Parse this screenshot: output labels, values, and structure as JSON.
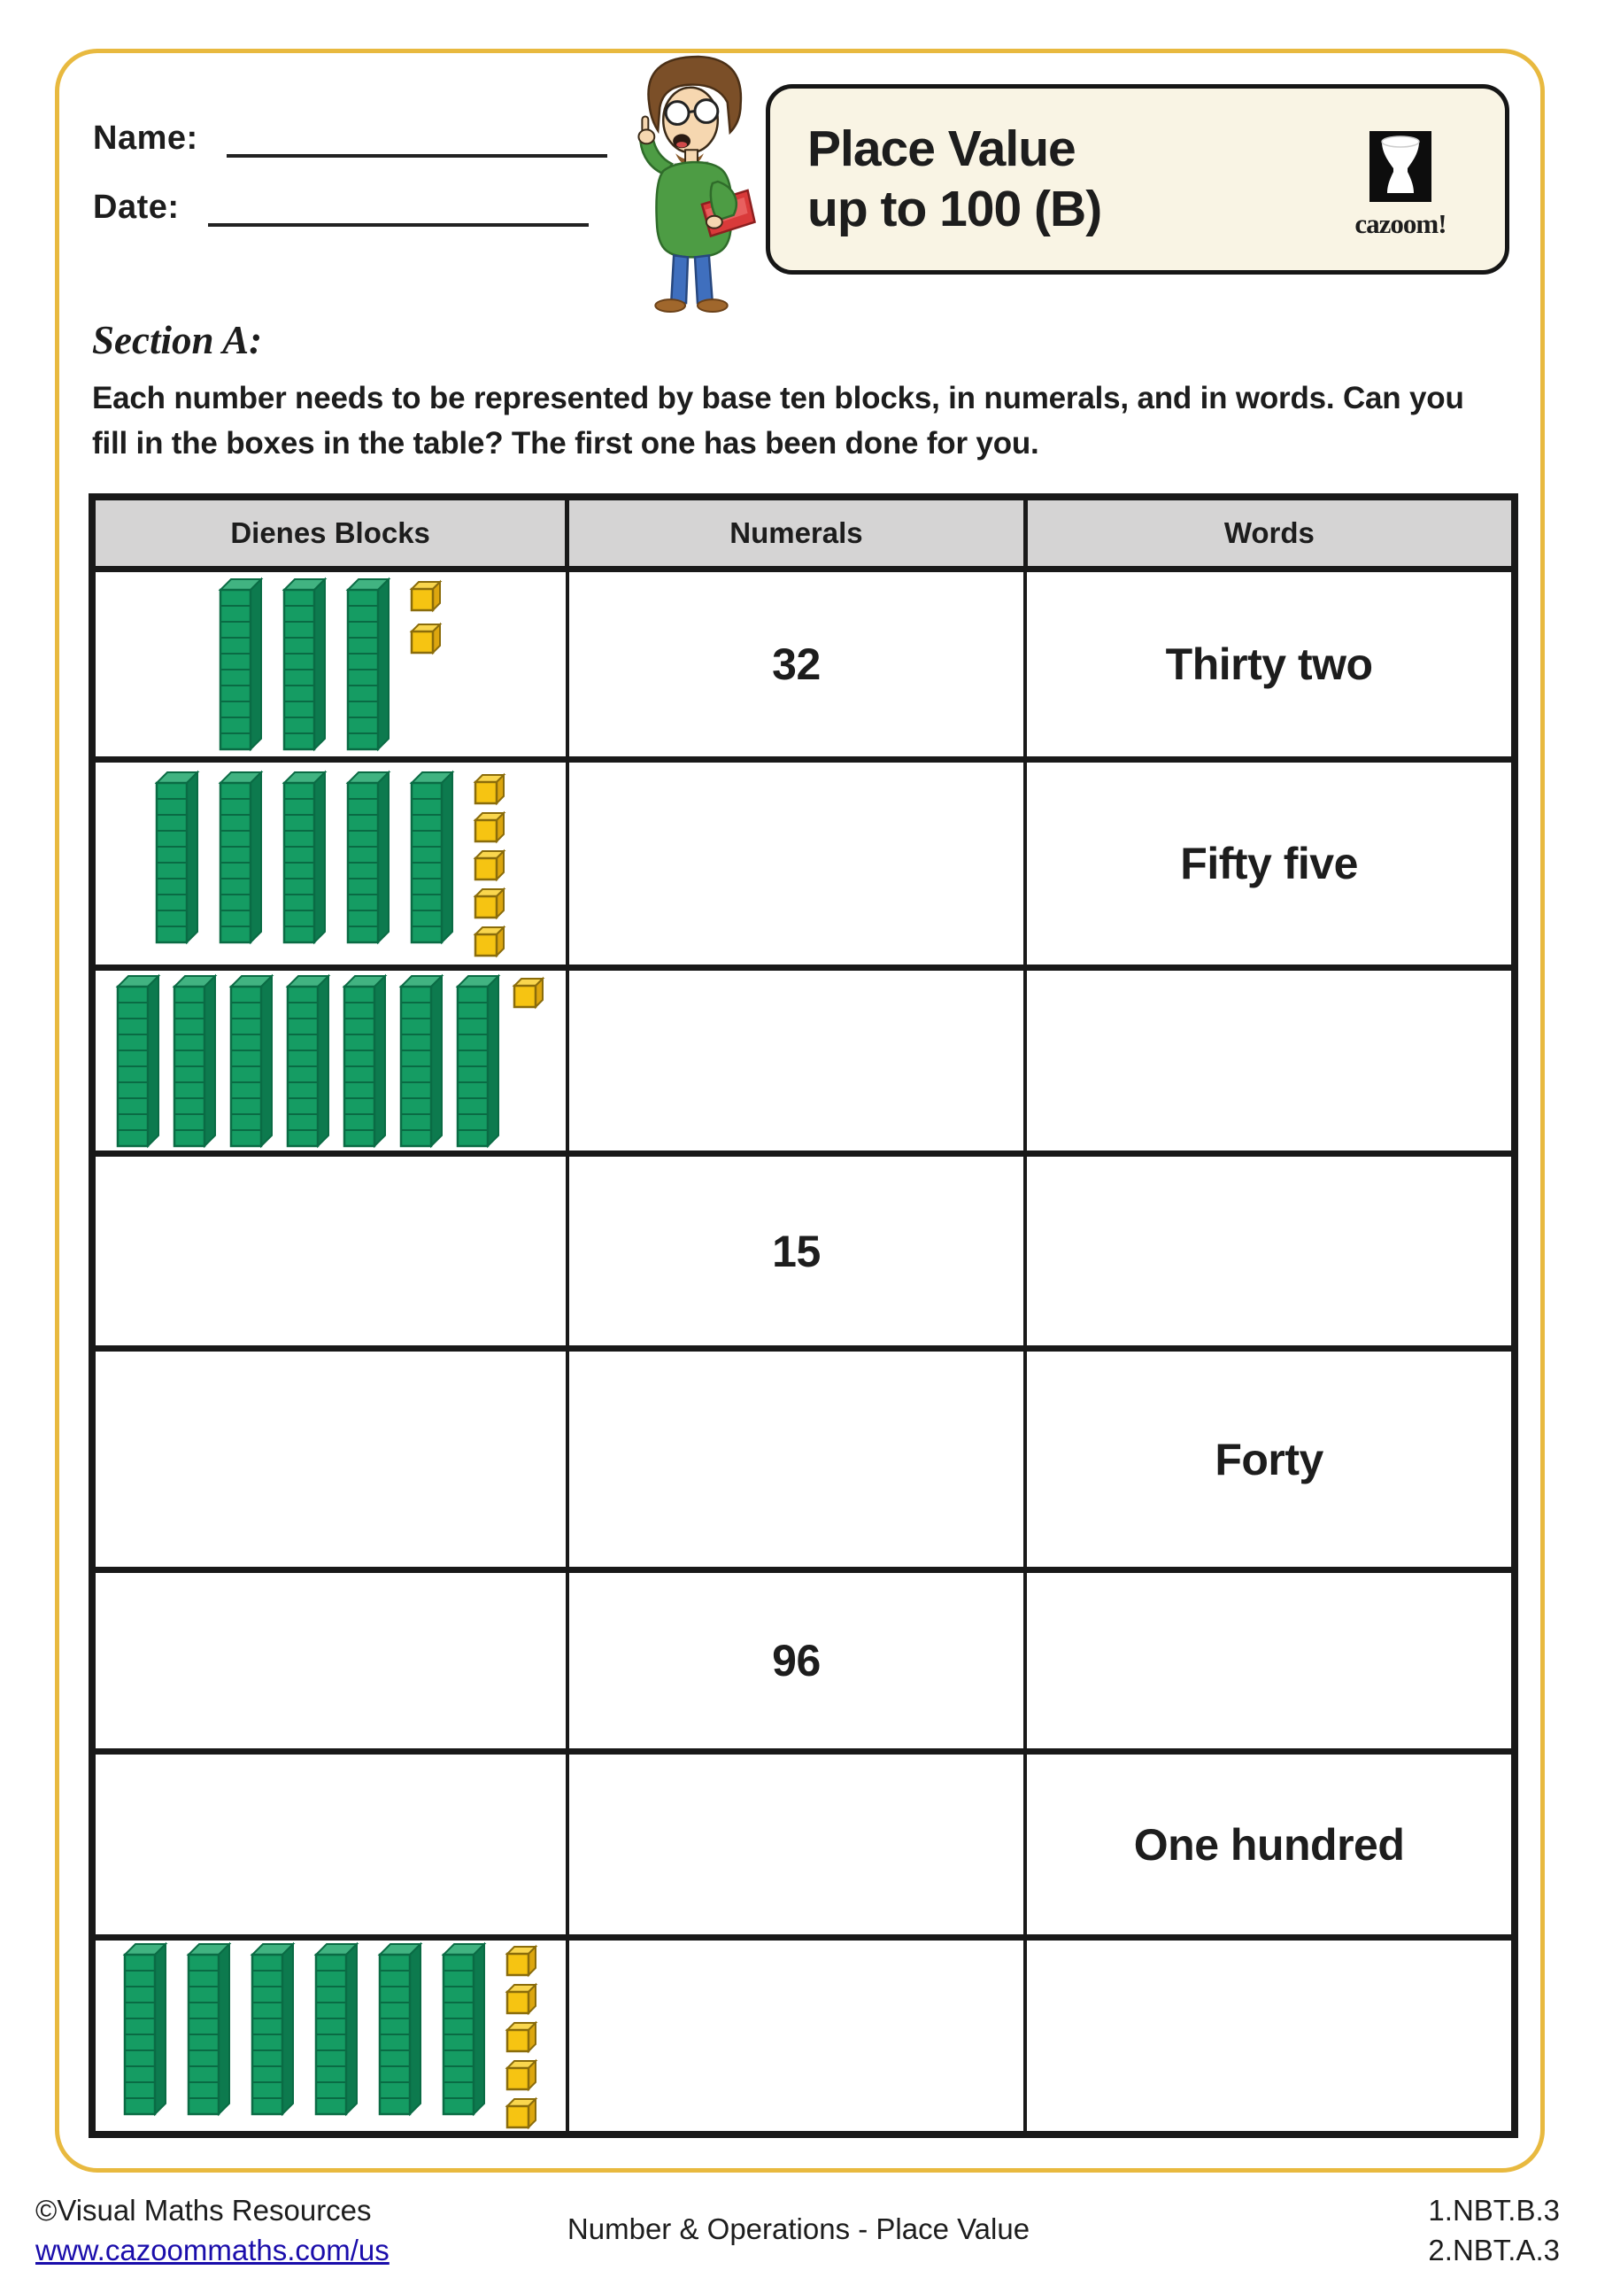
{
  "header": {
    "name_label": "Name:",
    "date_label": "Date:",
    "title_line1": "Place Value",
    "title_line2": "up to 100 (B)",
    "logo_text": "cazoom!"
  },
  "section": {
    "heading": "Section A:",
    "instructions": "Each number needs to be represented by base ten blocks, in numerals, and in words. Can you fill in the boxes in the table? The first one has been done for you."
  },
  "table": {
    "headers": [
      "Dienes Blocks",
      "Numerals",
      "Words"
    ],
    "rows": [
      {
        "blocks": {
          "rods": 3,
          "cubes": 2
        },
        "numeral": "32",
        "words": "Thirty two"
      },
      {
        "blocks": {
          "rods": 5,
          "cubes": 5
        },
        "numeral": "",
        "words": "Fifty five"
      },
      {
        "blocks": {
          "rods": 7,
          "cubes": 1
        },
        "numeral": "",
        "words": ""
      },
      {
        "blocks": {
          "rods": 0,
          "cubes": 0
        },
        "numeral": "15",
        "words": ""
      },
      {
        "blocks": {
          "rods": 0,
          "cubes": 0
        },
        "numeral": "",
        "words": "Forty"
      },
      {
        "blocks": {
          "rods": 0,
          "cubes": 0
        },
        "numeral": "96",
        "words": ""
      },
      {
        "blocks": {
          "rods": 0,
          "cubes": 0
        },
        "numeral": "",
        "words": "One hundred"
      },
      {
        "blocks": {
          "rods": 6,
          "cubes": 5
        },
        "numeral": "",
        "words": ""
      }
    ]
  },
  "footer": {
    "copyright": "©Visual Maths Resources",
    "url": "www.cazoommaths.com/us",
    "center": "Number & Operations - Place Value",
    "standards": [
      "1.NBT.B.3",
      "2.NBT.A.3"
    ]
  },
  "colors": {
    "frame_gold": "#E8B93F",
    "rod_green": "#159C63",
    "rod_green_light": "#41B381",
    "rod_green_dark": "#0D7A4E",
    "rod_outline": "#0A6B44",
    "cube_gold": "#F6C412",
    "cube_gold_light": "#F9D64E",
    "cube_gold_dark": "#DCA60F",
    "cube_outline": "#8A6C0B",
    "header_gray": "#D5D4D4",
    "title_cream": "#F9F4E4",
    "link_blue": "#1A0DAB"
  }
}
